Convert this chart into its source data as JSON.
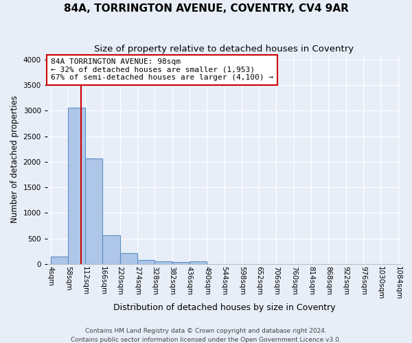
{
  "title": "84A, TORRINGTON AVENUE, COVENTRY, CV4 9AR",
  "subtitle": "Size of property relative to detached houses in Coventry",
  "xlabel": "Distribution of detached houses by size in Coventry",
  "ylabel": "Number of detached properties",
  "footer1": "Contains HM Land Registry data © Crown copyright and database right 2024.",
  "footer2": "Contains public sector information licensed under the Open Government Licence v3.0.",
  "bin_edges": [
    4,
    58,
    112,
    166,
    220,
    274,
    328,
    382,
    436,
    490,
    544,
    598,
    652,
    706,
    760,
    814,
    868,
    922,
    976,
    1030,
    1084
  ],
  "bar_heights": [
    150,
    3060,
    2060,
    560,
    220,
    75,
    50,
    40,
    50,
    0,
    0,
    0,
    0,
    0,
    0,
    0,
    0,
    0,
    0,
    0
  ],
  "bar_color": "#aec6e8",
  "bar_edge_color": "#5a8fc2",
  "property_size": 98,
  "red_line_color": "#cc0000",
  "annotation_text": "84A TORRINGTON AVENUE: 98sqm\n← 32% of detached houses are smaller (1,953)\n67% of semi-detached houses are larger (4,100) →",
  "annotation_box_color": "#ffffff",
  "annotation_box_edge_color": "#cc0000",
  "ylim": [
    0,
    4100
  ],
  "yticks": [
    0,
    500,
    1000,
    1500,
    2000,
    2500,
    3000,
    3500,
    4000
  ],
  "bg_color": "#e8eef8",
  "plot_bg_color": "#e8eef8",
  "grid_color": "#ffffff",
  "title_fontsize": 11,
  "subtitle_fontsize": 9.5,
  "xlabel_fontsize": 9,
  "ylabel_fontsize": 8.5,
  "tick_fontsize": 7.5,
  "footer_fontsize": 6.5
}
